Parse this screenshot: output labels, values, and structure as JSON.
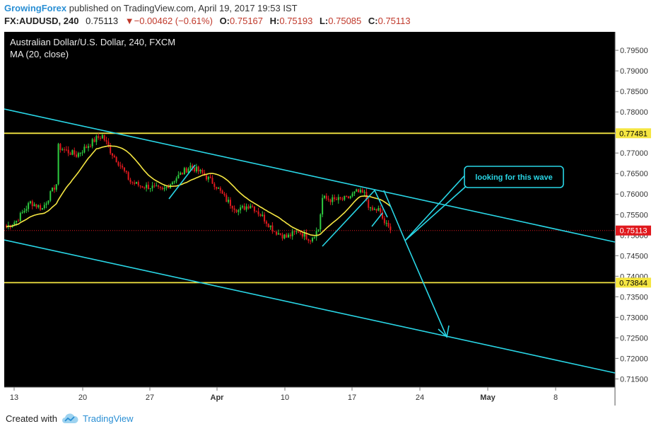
{
  "header": {
    "author": "GrowingForex",
    "published_text": "published on TradingView.com, April 19, 2017 19:53 IST",
    "symbol": "FX:AUDUSD, 240",
    "last": "0.75113",
    "change": "▼−0.00462 (−0.61%)",
    "o_label": "O:",
    "o_value": "0.75167",
    "h_label": "H:",
    "h_value": "0.75193",
    "l_label": "L:",
    "l_value": "0.75085",
    "c_label": "C:",
    "c_value": "0.75113"
  },
  "colors": {
    "background": "#000000",
    "up_candle": "#2ecc40",
    "down_candle": "#e0191e",
    "moving_average": "#f5e642",
    "channel": "#29d6e6",
    "horizontal_level": "#f5e642",
    "last_price_line": "#e0191e",
    "axis_text": "#333333"
  },
  "chart_data": {
    "type": "candlestick",
    "title": "Australian Dollar/U.S. Dollar, 240, FXCM",
    "indicator": "MA (20, close)",
    "ylim": [
      0.713,
      0.7995
    ],
    "y_ticks": [
      "0.79500",
      "0.79000",
      "0.78500",
      "0.78000",
      "0.77500",
      "0.77000",
      "0.76500",
      "0.76000",
      "0.75500",
      "0.75000",
      "0.74500",
      "0.74000",
      "0.73500",
      "0.73000",
      "0.72500",
      "0.72000",
      "0.71500"
    ],
    "x_ticks": [
      "13",
      "20",
      "27",
      "Apr",
      "10",
      "17",
      "24",
      "May",
      "8"
    ],
    "last_price_label": "0.75113",
    "levels": [
      {
        "value": 0.77481,
        "label": "0.77481"
      },
      {
        "value": 0.73844,
        "label": "0.73844"
      }
    ],
    "annotation": "looking for this wave",
    "anchors": [
      {
        "t": 0,
        "p": 0.752
      },
      {
        "t": 5,
        "p": 0.7535
      },
      {
        "t": 12,
        "p": 0.758
      },
      {
        "t": 18,
        "p": 0.7565
      },
      {
        "t": 22,
        "p": 0.76
      },
      {
        "t": 25,
        "p": 0.7625
      },
      {
        "t": 26,
        "p": 0.7715
      },
      {
        "t": 30,
        "p": 0.7705
      },
      {
        "t": 35,
        "p": 0.7695
      },
      {
        "t": 40,
        "p": 0.7715
      },
      {
        "t": 45,
        "p": 0.7735
      },
      {
        "t": 48,
        "p": 0.7742
      },
      {
        "t": 52,
        "p": 0.7705
      },
      {
        "t": 57,
        "p": 0.767
      },
      {
        "t": 62,
        "p": 0.763
      },
      {
        "t": 67,
        "p": 0.762
      },
      {
        "t": 72,
        "p": 0.7618
      },
      {
        "t": 78,
        "p": 0.7608
      },
      {
        "t": 85,
        "p": 0.764
      },
      {
        "t": 92,
        "p": 0.7668
      },
      {
        "t": 98,
        "p": 0.765
      },
      {
        "t": 104,
        "p": 0.7625
      },
      {
        "t": 110,
        "p": 0.7585
      },
      {
        "t": 116,
        "p": 0.756
      },
      {
        "t": 122,
        "p": 0.7575
      },
      {
        "t": 128,
        "p": 0.7545
      },
      {
        "t": 134,
        "p": 0.751
      },
      {
        "t": 140,
        "p": 0.7495
      },
      {
        "t": 146,
        "p": 0.751
      },
      {
        "t": 152,
        "p": 0.749
      },
      {
        "t": 156,
        "p": 0.7515
      },
      {
        "t": 158,
        "p": 0.759
      },
      {
        "t": 164,
        "p": 0.7585
      },
      {
        "t": 170,
        "p": 0.7588
      },
      {
        "t": 175,
        "p": 0.7605
      },
      {
        "t": 179,
        "p": 0.76
      },
      {
        "t": 182,
        "p": 0.756
      },
      {
        "t": 186,
        "p": 0.7562
      },
      {
        "t": 189,
        "p": 0.753
      },
      {
        "t": 192,
        "p": 0.7511
      }
    ]
  },
  "footer": {
    "created_with": "Created with",
    "brand": "TradingView"
  }
}
